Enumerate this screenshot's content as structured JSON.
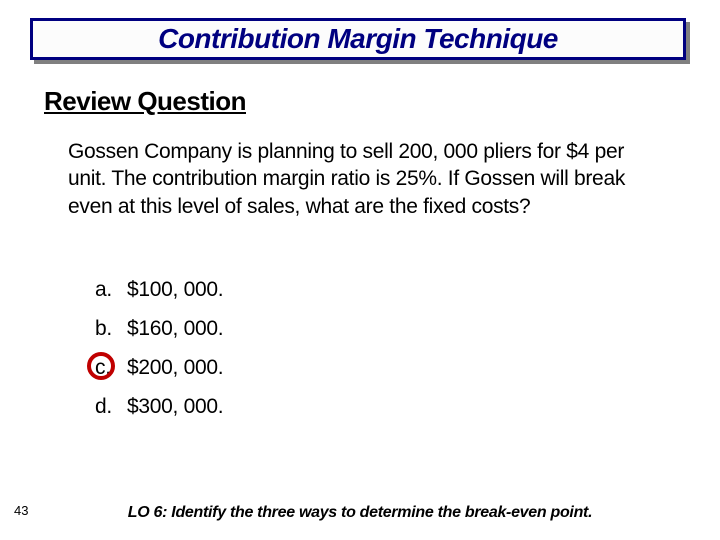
{
  "slide": {
    "title": "Contribution Margin Technique",
    "title_color": "#000080",
    "title_border_color": "#000080",
    "title_bg": "#fcfcfc",
    "shadow_color": "#808080",
    "subtitle": "Review Question",
    "question": "Gossen Company is planning to sell 200, 000 pliers for $4 per unit.  The contribution margin ratio is 25%.  If Gossen will break even at this level of sales, what are the fixed costs?",
    "options": [
      {
        "letter": "a.",
        "value": "$100, 000."
      },
      {
        "letter": "b.",
        "value": "$160, 000."
      },
      {
        "letter": "c.",
        "value": "$200, 000."
      },
      {
        "letter": "d.",
        "value": "$300, 000."
      }
    ],
    "correct_index": 2,
    "circle_color": "#c00000",
    "page_number": "43",
    "footer": "LO 6: Identify the three ways to determine the break-even point.",
    "background_color": "#ffffff",
    "text_color": "#000000",
    "title_fontsize": 28,
    "subtitle_fontsize": 26,
    "body_fontsize": 21,
    "footer_fontsize": 16,
    "pagenum_fontsize": 13
  }
}
